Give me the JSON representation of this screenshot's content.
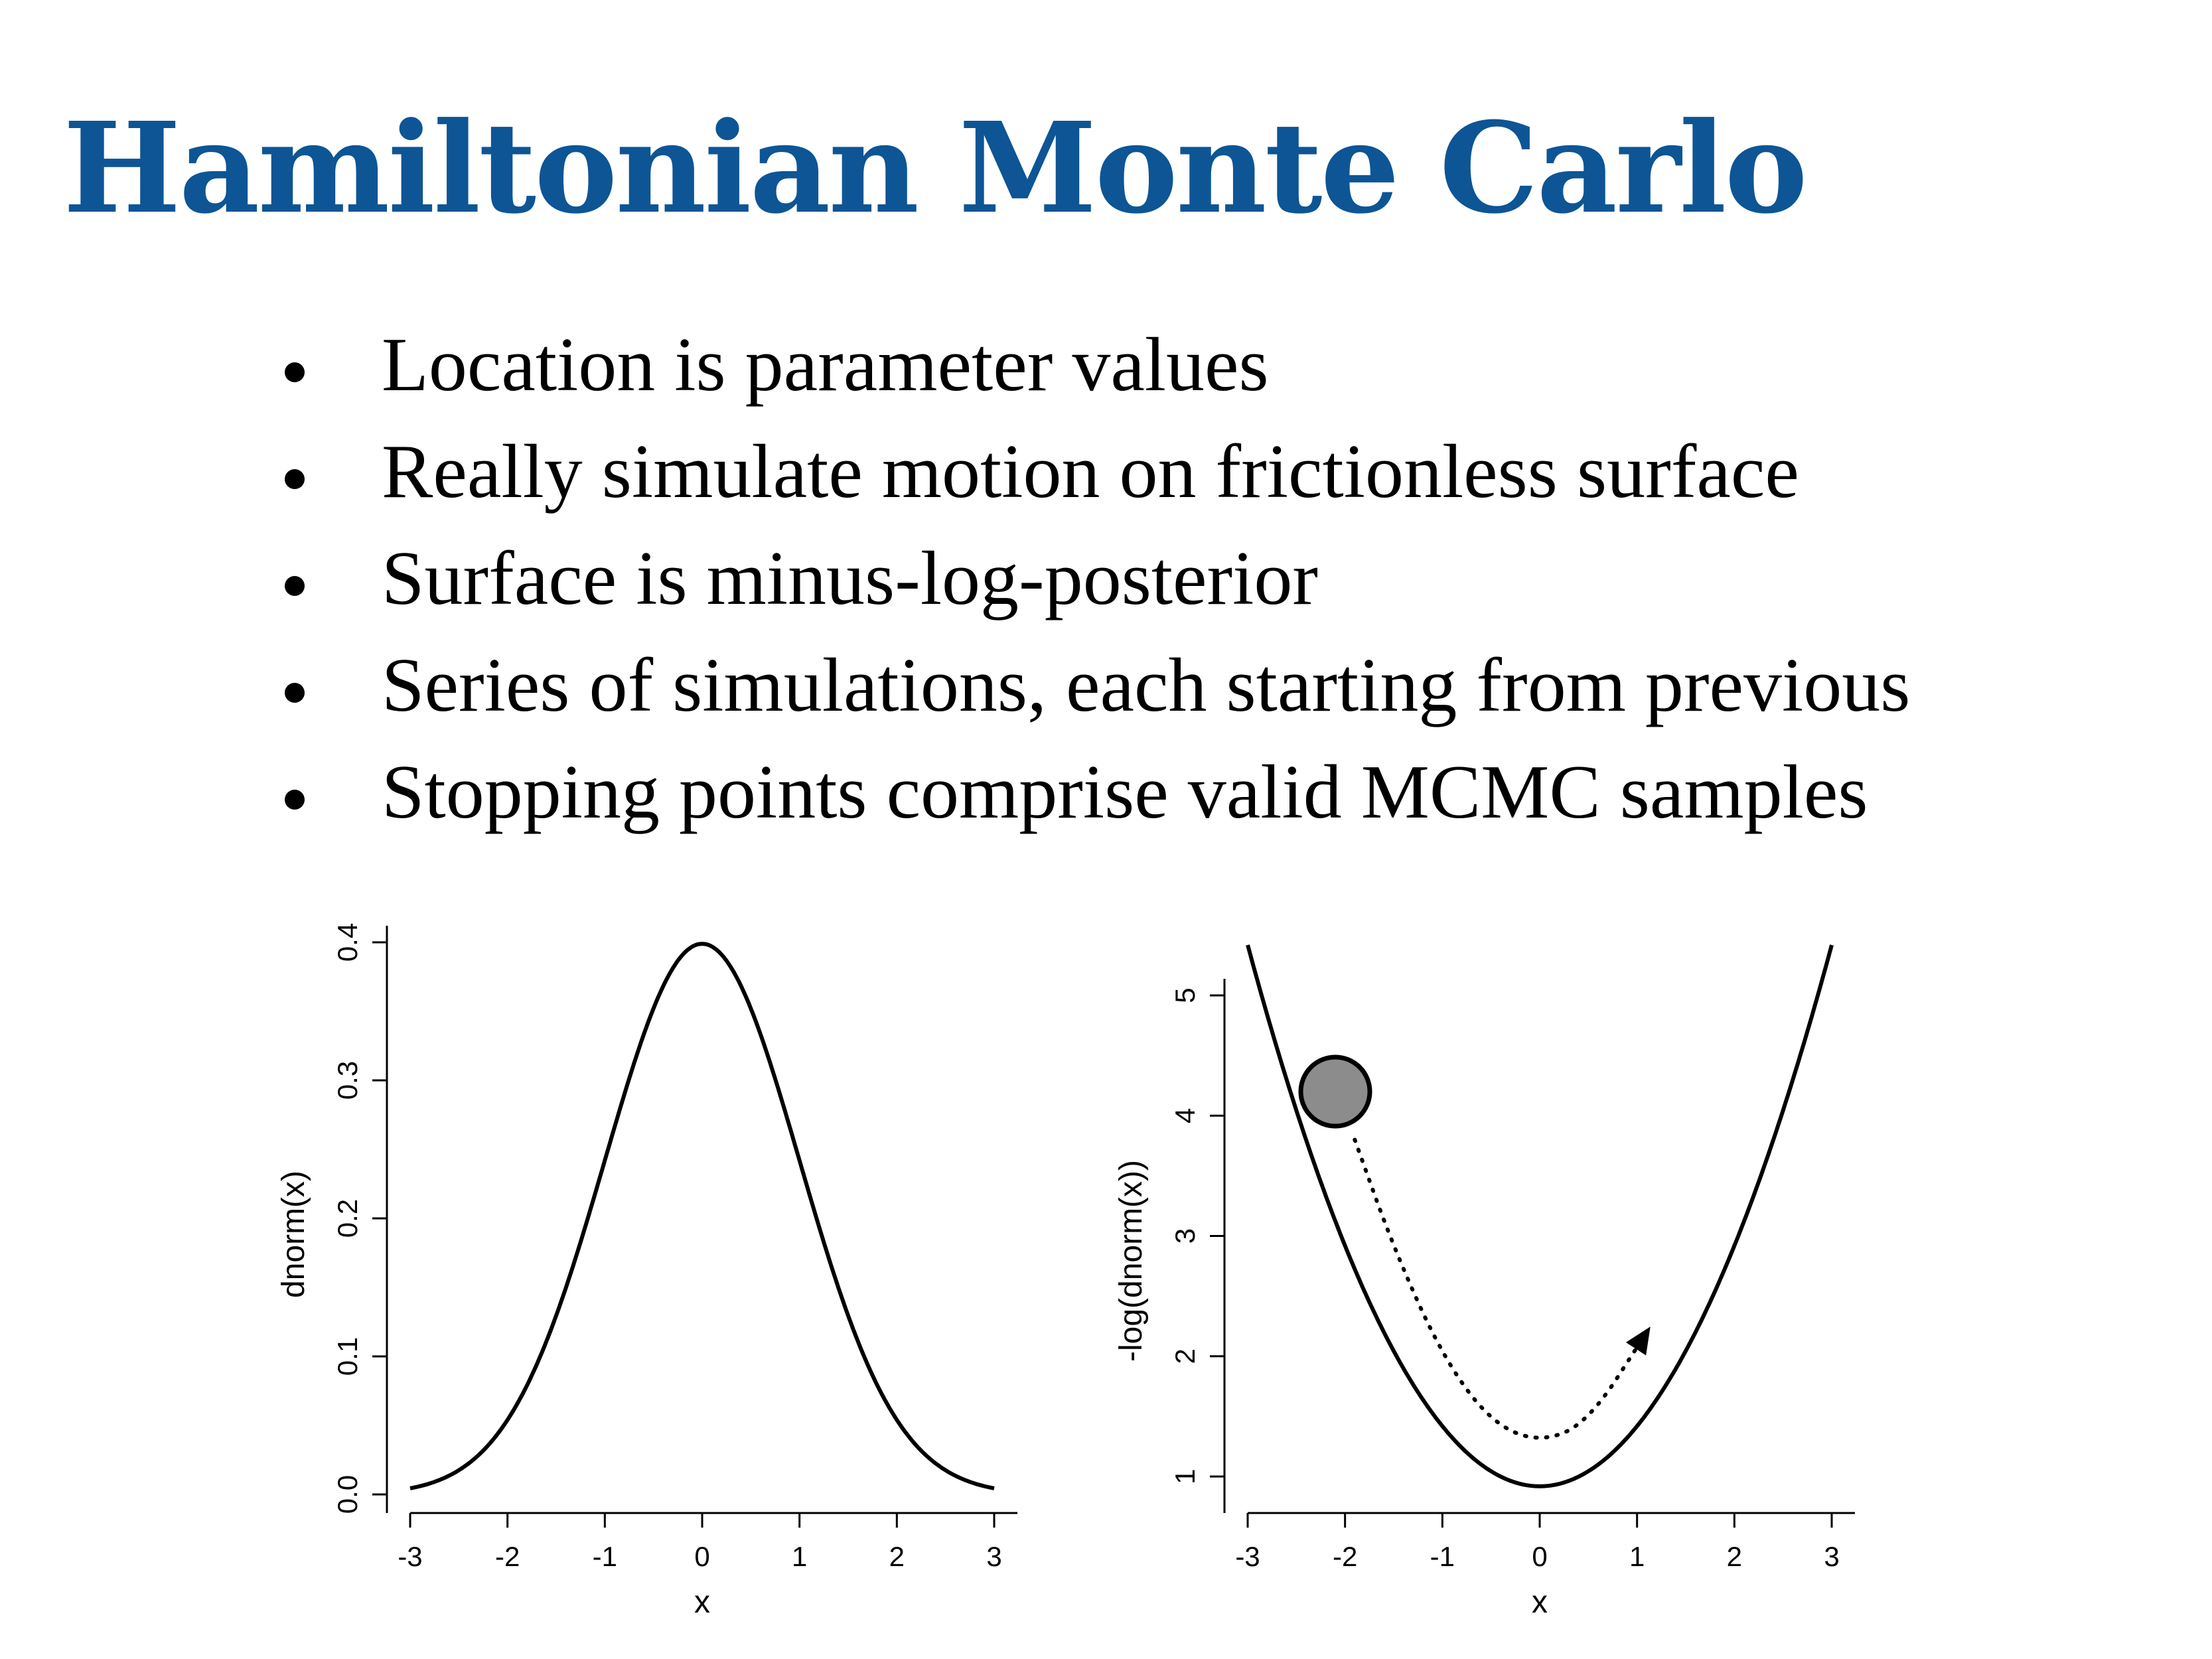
{
  "slide": {
    "title": "Hamiltonian Monte Carlo",
    "title_color": "#0d5595",
    "bullets": [
      "Location is parameter values",
      "Really simulate motion on frictionless surface",
      "Surface is minus-log-posterior",
      "Series of simulations, each starting from previous",
      "Stopping points comprise valid MCMC samples"
    ]
  },
  "chart_data": [
    {
      "type": "line",
      "function": "dnorm(x)",
      "x_range": [
        -3,
        3
      ],
      "xticks": [
        "-3",
        "-2",
        "-1",
        "0",
        "1",
        "2",
        "3"
      ],
      "yticks": [
        "0.0",
        "0.1",
        "0.2",
        "0.3",
        "0.4"
      ],
      "xlabel": "x",
      "ylabel": "dnorm(x)",
      "xlim": [
        -3,
        3
      ],
      "ylim": [
        0,
        0.4
      ],
      "line_color": "#000000"
    },
    {
      "type": "line",
      "function": "-log(dnorm(x))",
      "x_range": [
        -3,
        3
      ],
      "xticks": [
        "-3",
        "-2",
        "-1",
        "0",
        "1",
        "2",
        "3"
      ],
      "yticks": [
        "1",
        "2",
        "3",
        "4",
        "5"
      ],
      "xlabel": "x",
      "ylabel": "-log(dnorm(x))",
      "xlim": [
        -3,
        3
      ],
      "ylim": [
        1,
        5
      ],
      "line_color": "#000000",
      "ball": {
        "x": -2.1,
        "y": 4.2,
        "fill": "#8c8c8c"
      },
      "trajectory": {
        "style": "dotted",
        "points": [
          [
            -1.9,
            3.8
          ],
          [
            -1.5,
            2.9
          ],
          [
            -1.0,
            2.0
          ],
          [
            -0.5,
            1.45
          ],
          [
            0,
            1.28
          ],
          [
            0.5,
            1.45
          ],
          [
            1.1,
            2.2
          ]
        ],
        "arrow_end": true
      }
    }
  ]
}
